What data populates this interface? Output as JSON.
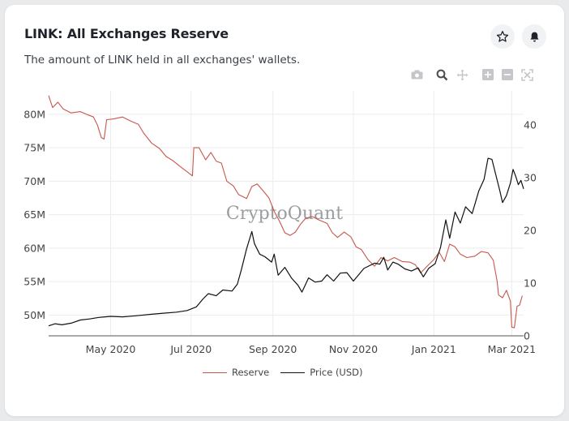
{
  "header": {
    "title": "LINK: All Exchanges Reserve",
    "subtitle": "The amount of LINK held in all exchanges' wallets.",
    "star_icon": "star-icon",
    "bell_icon": "bell-icon"
  },
  "modebar": [
    "camera-icon",
    "zoom-icon",
    "pan-icon",
    "zoom-in-icon",
    "zoom-out-icon",
    "autoscale-icon"
  ],
  "watermark": "CryptoQuant",
  "colors": {
    "reserve": "#c8564b",
    "price": "#111111",
    "grid": "#ececec"
  },
  "chart_data": {
    "type": "line",
    "x_start": "2020-03-15",
    "x_end": "2021-03-10",
    "x_ticks": [
      {
        "date": "2020-05-01",
        "label": "May 2020"
      },
      {
        "date": "2020-07-01",
        "label": "Jul 2020"
      },
      {
        "date": "2020-09-01",
        "label": "Sep 2020"
      },
      {
        "date": "2020-11-01",
        "label": "Nov 2020"
      },
      {
        "date": "2021-01-01",
        "label": "Jan 2021"
      },
      {
        "date": "2021-03-01",
        "label": "Mar 2021"
      }
    ],
    "y_left": {
      "range": [
        46.9,
        83.5
      ],
      "ticks": [
        50,
        55,
        60,
        65,
        70,
        75,
        80
      ],
      "tick_labels": [
        "50M",
        "55M",
        "60M",
        "65M",
        "70M",
        "75M",
        "80M"
      ]
    },
    "y_right": {
      "range": [
        0,
        46.5
      ],
      "ticks": [
        0,
        10,
        20,
        30,
        40
      ],
      "tick_labels": [
        "0",
        "10",
        "20",
        "30",
        "40"
      ]
    },
    "grid": true,
    "legend_position": "bottom",
    "series": [
      {
        "name": "Reserve",
        "axis": "left",
        "color": "#c8564b",
        "points": [
          [
            "2020-03-15",
            82.8
          ],
          [
            "2020-03-18",
            81.0
          ],
          [
            "2020-03-22",
            81.8
          ],
          [
            "2020-03-26",
            80.8
          ],
          [
            "2020-04-01",
            80.2
          ],
          [
            "2020-04-08",
            80.4
          ],
          [
            "2020-04-14",
            79.9
          ],
          [
            "2020-04-18",
            79.6
          ],
          [
            "2020-04-21",
            78.4
          ],
          [
            "2020-04-24",
            76.5
          ],
          [
            "2020-04-26",
            76.3
          ],
          [
            "2020-04-28",
            79.2
          ],
          [
            "2020-05-03",
            79.3
          ],
          [
            "2020-05-10",
            79.6
          ],
          [
            "2020-05-16",
            79.0
          ],
          [
            "2020-05-22",
            78.5
          ],
          [
            "2020-05-26",
            77.2
          ],
          [
            "2020-06-01",
            75.7
          ],
          [
            "2020-06-07",
            74.9
          ],
          [
            "2020-06-12",
            73.7
          ],
          [
            "2020-06-17",
            73.1
          ],
          [
            "2020-06-22",
            72.3
          ],
          [
            "2020-06-28",
            71.4
          ],
          [
            "2020-07-02",
            70.8
          ],
          [
            "2020-07-03",
            75.0
          ],
          [
            "2020-07-07",
            75.0
          ],
          [
            "2020-07-12",
            73.2
          ],
          [
            "2020-07-16",
            74.3
          ],
          [
            "2020-07-20",
            73.0
          ],
          [
            "2020-07-24",
            72.7
          ],
          [
            "2020-07-28",
            70.0
          ],
          [
            "2020-08-02",
            69.3
          ],
          [
            "2020-08-06",
            68.0
          ],
          [
            "2020-08-12",
            67.4
          ],
          [
            "2020-08-16",
            69.2
          ],
          [
            "2020-08-20",
            69.6
          ],
          [
            "2020-08-24",
            68.7
          ],
          [
            "2020-08-29",
            67.5
          ],
          [
            "2020-09-02",
            65.5
          ],
          [
            "2020-09-06",
            64.0
          ],
          [
            "2020-09-10",
            62.3
          ],
          [
            "2020-09-14",
            61.9
          ],
          [
            "2020-09-18",
            62.4
          ],
          [
            "2020-09-22",
            63.6
          ],
          [
            "2020-09-26",
            64.5
          ],
          [
            "2020-10-01",
            64.7
          ],
          [
            "2020-10-06",
            64.2
          ],
          [
            "2020-10-12",
            63.7
          ],
          [
            "2020-10-16",
            62.3
          ],
          [
            "2020-10-20",
            61.6
          ],
          [
            "2020-10-25",
            62.4
          ],
          [
            "2020-10-30",
            61.7
          ],
          [
            "2020-11-03",
            60.2
          ],
          [
            "2020-11-07",
            59.8
          ],
          [
            "2020-11-12",
            58.3
          ],
          [
            "2020-11-17",
            57.3
          ],
          [
            "2020-11-22",
            58.6
          ],
          [
            "2020-11-27",
            58.1
          ],
          [
            "2020-12-02",
            58.6
          ],
          [
            "2020-12-08",
            58.0
          ],
          [
            "2020-12-14",
            57.9
          ],
          [
            "2020-12-18",
            57.5
          ],
          [
            "2020-12-22",
            56.3
          ],
          [
            "2020-12-26",
            57.1
          ],
          [
            "2021-01-01",
            58.3
          ],
          [
            "2021-01-05",
            59.4
          ],
          [
            "2021-01-09",
            58.0
          ],
          [
            "2021-01-13",
            60.6
          ],
          [
            "2021-01-17",
            60.2
          ],
          [
            "2021-01-21",
            59.1
          ],
          [
            "2021-01-26",
            58.6
          ],
          [
            "2021-02-01",
            58.8
          ],
          [
            "2021-02-06",
            59.5
          ],
          [
            "2021-02-11",
            59.3
          ],
          [
            "2021-02-15",
            58.2
          ],
          [
            "2021-02-18",
            55.0
          ],
          [
            "2021-02-19",
            53.0
          ],
          [
            "2021-02-22",
            52.6
          ],
          [
            "2021-02-25",
            53.7
          ],
          [
            "2021-02-28",
            52.1
          ],
          [
            "2021-03-01",
            48.2
          ],
          [
            "2021-03-03",
            48.1
          ],
          [
            "2021-03-05",
            51.3
          ],
          [
            "2021-03-07",
            51.5
          ],
          [
            "2021-03-09",
            52.9
          ]
        ]
      },
      {
        "name": "Price (USD)",
        "axis": "right",
        "color": "#111111",
        "points": [
          [
            "2020-03-15",
            1.9
          ],
          [
            "2020-03-20",
            2.3
          ],
          [
            "2020-03-25",
            2.1
          ],
          [
            "2020-04-01",
            2.4
          ],
          [
            "2020-04-08",
            3.0
          ],
          [
            "2020-04-15",
            3.2
          ],
          [
            "2020-04-22",
            3.5
          ],
          [
            "2020-05-01",
            3.7
          ],
          [
            "2020-05-10",
            3.6
          ],
          [
            "2020-05-20",
            3.8
          ],
          [
            "2020-06-01",
            4.1
          ],
          [
            "2020-06-10",
            4.3
          ],
          [
            "2020-06-20",
            4.5
          ],
          [
            "2020-06-28",
            4.8
          ],
          [
            "2020-07-05",
            5.5
          ],
          [
            "2020-07-10",
            7.0
          ],
          [
            "2020-07-14",
            8.0
          ],
          [
            "2020-07-20",
            7.6
          ],
          [
            "2020-07-25",
            8.7
          ],
          [
            "2020-08-01",
            8.5
          ],
          [
            "2020-08-05",
            9.8
          ],
          [
            "2020-08-08",
            12.5
          ],
          [
            "2020-08-12",
            16.5
          ],
          [
            "2020-08-16",
            19.8
          ],
          [
            "2020-08-18",
            17.5
          ],
          [
            "2020-08-22",
            15.5
          ],
          [
            "2020-08-26",
            15.0
          ],
          [
            "2020-08-31",
            14.0
          ],
          [
            "2020-09-02",
            15.5
          ],
          [
            "2020-09-05",
            11.5
          ],
          [
            "2020-09-10",
            13.0
          ],
          [
            "2020-09-15",
            11.0
          ],
          [
            "2020-09-20",
            9.6
          ],
          [
            "2020-09-23",
            8.3
          ],
          [
            "2020-09-28",
            11.0
          ],
          [
            "2020-10-03",
            10.2
          ],
          [
            "2020-10-08",
            10.4
          ],
          [
            "2020-10-12",
            11.6
          ],
          [
            "2020-10-17",
            10.4
          ],
          [
            "2020-10-22",
            11.9
          ],
          [
            "2020-10-27",
            12.0
          ],
          [
            "2020-11-01",
            10.4
          ],
          [
            "2020-11-05",
            11.6
          ],
          [
            "2020-11-09",
            12.8
          ],
          [
            "2020-11-13",
            13.3
          ],
          [
            "2020-11-17",
            13.8
          ],
          [
            "2020-11-21",
            13.6
          ],
          [
            "2020-11-24",
            14.9
          ],
          [
            "2020-11-27",
            12.5
          ],
          [
            "2020-12-01",
            14.0
          ],
          [
            "2020-12-05",
            13.6
          ],
          [
            "2020-12-10",
            12.7
          ],
          [
            "2020-12-15",
            12.3
          ],
          [
            "2020-12-20",
            12.9
          ],
          [
            "2020-12-24",
            11.2
          ],
          [
            "2020-12-28",
            12.8
          ],
          [
            "2021-01-02",
            13.7
          ],
          [
            "2021-01-06",
            16.8
          ],
          [
            "2021-01-10",
            22.0
          ],
          [
            "2021-01-13",
            18.5
          ],
          [
            "2021-01-17",
            23.5
          ],
          [
            "2021-01-21",
            21.4
          ],
          [
            "2021-01-25",
            24.5
          ],
          [
            "2021-01-30",
            23.2
          ],
          [
            "2021-02-04",
            27.5
          ],
          [
            "2021-02-08",
            29.7
          ],
          [
            "2021-02-11",
            33.7
          ],
          [
            "2021-02-14",
            33.5
          ],
          [
            "2021-02-17",
            30.5
          ],
          [
            "2021-02-20",
            27.5
          ],
          [
            "2021-02-22",
            25.3
          ],
          [
            "2021-02-25",
            26.6
          ],
          [
            "2021-02-28",
            29.0
          ],
          [
            "2021-03-02",
            31.6
          ],
          [
            "2021-03-04",
            30.3
          ],
          [
            "2021-03-06",
            28.7
          ],
          [
            "2021-03-08",
            29.5
          ],
          [
            "2021-03-10",
            27.9
          ]
        ]
      }
    ]
  }
}
